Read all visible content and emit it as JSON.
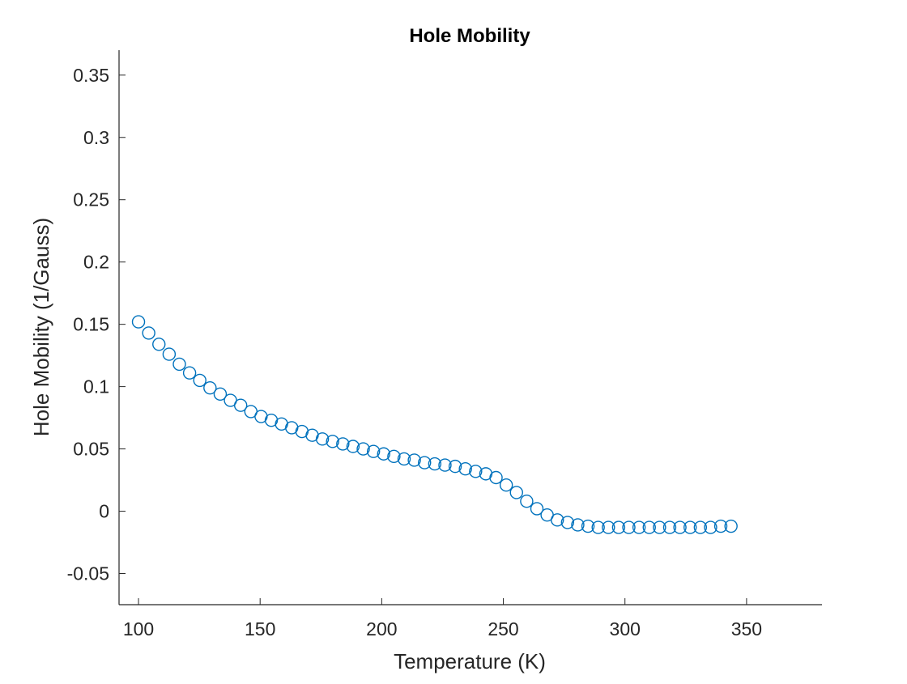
{
  "chart_data": {
    "type": "scatter",
    "title": "Hole Mobility",
    "xlabel": "Temperature (K)",
    "ylabel": "Hole Mobility (1/Gauss)",
    "xlim": [
      92,
      381
    ],
    "ylim": [
      -0.075,
      0.37
    ],
    "xticks": [
      100,
      150,
      200,
      250,
      300,
      350
    ],
    "xtick_labels": [
      "100",
      "150",
      "200",
      "250",
      "300",
      "350"
    ],
    "yticks": [
      -0.05,
      0,
      0.05,
      0.1,
      0.15,
      0.2,
      0.25,
      0.3,
      0.35
    ],
    "ytick_labels": [
      "-0.05",
      "0",
      "0.05",
      "0.1",
      "0.15",
      "0.2",
      "0.25",
      "0.3",
      "0.35"
    ],
    "grid": false,
    "marker": "open-circle",
    "series_color": "#0072bd",
    "x": [
      100,
      104.2,
      108.4,
      112.6,
      116.8,
      121,
      125.2,
      129.4,
      133.6,
      137.8,
      142,
      146.2,
      150.4,
      154.6,
      158.8,
      163,
      167.2,
      171.4,
      175.6,
      179.8,
      184,
      188.2,
      192.4,
      196.6,
      200.8,
      205,
      209.2,
      213.4,
      217.6,
      221.8,
      226,
      230.2,
      234.4,
      238.6,
      242.8,
      247,
      251.2,
      255.4,
      259.6,
      263.8,
      268,
      272.2,
      276.4,
      280.6,
      284.8,
      289,
      293.2,
      297.4,
      301.6,
      305.8,
      310,
      314.2,
      318.4,
      322.6,
      326.8,
      331,
      335.2,
      339.4,
      343.6
    ],
    "y": [
      0.152,
      0.143,
      0.134,
      0.126,
      0.118,
      0.111,
      0.105,
      0.099,
      0.094,
      0.089,
      0.085,
      0.08,
      0.076,
      0.073,
      0.07,
      0.067,
      0.064,
      0.061,
      0.058,
      0.056,
      0.054,
      0.052,
      0.05,
      0.048,
      0.046,
      0.044,
      0.042,
      0.041,
      0.039,
      0.038,
      0.037,
      0.036,
      0.034,
      0.032,
      0.03,
      0.027,
      0.021,
      0.015,
      0.008,
      0.002,
      -0.003,
      -0.007,
      -0.009,
      -0.011,
      -0.012,
      -0.013,
      -0.013,
      -0.013,
      -0.013,
      -0.013,
      -0.013,
      -0.013,
      -0.013,
      -0.013,
      -0.013,
      -0.013,
      -0.013,
      -0.012,
      -0.012
    ]
  }
}
